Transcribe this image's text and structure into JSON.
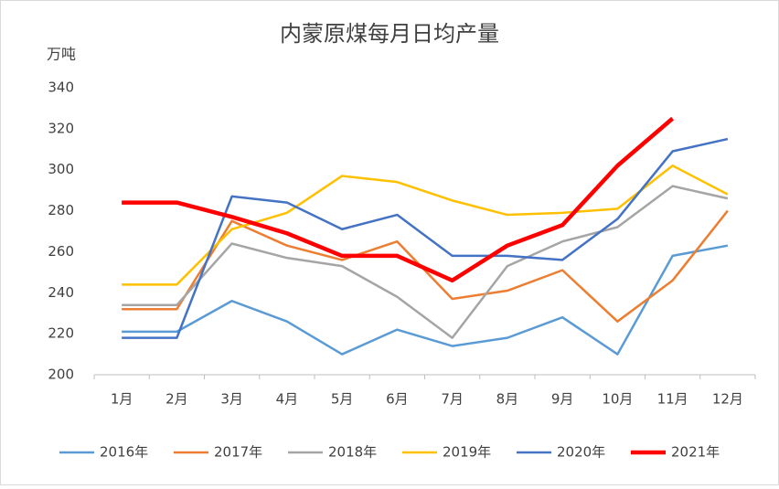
{
  "chart_data": {
    "type": "line",
    "title": "内蒙原煤每月日均产量",
    "ylabel": "万吨",
    "categories": [
      "1月",
      "2月",
      "3月",
      "4月",
      "5月",
      "6月",
      "7月",
      "8月",
      "9月",
      "10月",
      "11月",
      "12月"
    ],
    "series": [
      {
        "name": "2016年",
        "color": "#5b9bd5",
        "values": [
          221,
          221,
          236,
          226,
          210,
          222,
          214,
          218,
          228,
          210,
          258,
          263
        ]
      },
      {
        "name": "2017年",
        "color": "#ed7d31",
        "values": [
          232,
          232,
          275,
          263,
          256,
          265,
          237,
          241,
          251,
          226,
          246,
          280
        ]
      },
      {
        "name": "2018年",
        "color": "#a5a5a5",
        "values": [
          234,
          234,
          264,
          257,
          253,
          238,
          218,
          253,
          265,
          272,
          292,
          286
        ]
      },
      {
        "name": "2019年",
        "color": "#ffc000",
        "values": [
          244,
          244,
          271,
          279,
          297,
          294,
          285,
          278,
          279,
          281,
          302,
          288
        ]
      },
      {
        "name": "2020年",
        "color": "#4472c4",
        "values": [
          218,
          218,
          287,
          284,
          271,
          278,
          258,
          258,
          256,
          276,
          309,
          315
        ]
      },
      {
        "name": "2021年",
        "color": "#ff0000",
        "values": [
          284,
          284,
          277,
          269,
          258,
          258,
          246,
          263,
          273,
          302,
          325,
          null
        ]
      }
    ],
    "ylim": [
      200,
      340
    ],
    "yticks": [
      200,
      220,
      240,
      260,
      280,
      300,
      320,
      340
    ],
    "grid": false,
    "legend": "bottom"
  }
}
